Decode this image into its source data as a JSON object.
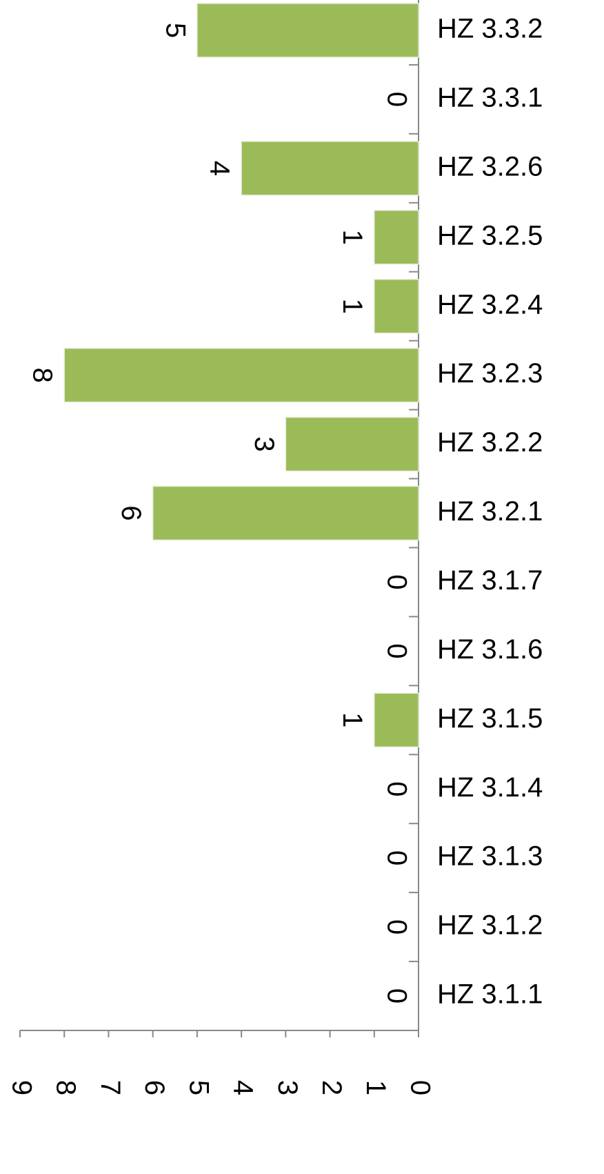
{
  "chart_data": {
    "type": "bar",
    "categories": [
      "HZ 3.1.1",
      "HZ 3.1.2",
      "HZ 3.1.3",
      "HZ 3.1.4",
      "HZ 3.1.5",
      "HZ 3.1.6",
      "HZ 3.1.7",
      "HZ 3.2.1",
      "HZ 3.2.2",
      "HZ 3.2.3",
      "HZ 3.2.4",
      "HZ 3.2.5",
      "HZ 3.2.6",
      "HZ 3.3.1",
      "HZ 3.3.2"
    ],
    "values": [
      0,
      0,
      0,
      0,
      1,
      0,
      0,
      6,
      3,
      8,
      1,
      1,
      4,
      0,
      5
    ],
    "color": "#9bbb59",
    "ylim": [
      0,
      9
    ],
    "yticks": [
      0,
      1,
      2,
      3,
      4,
      5,
      6,
      7,
      8,
      9
    ],
    "grid": false
  }
}
